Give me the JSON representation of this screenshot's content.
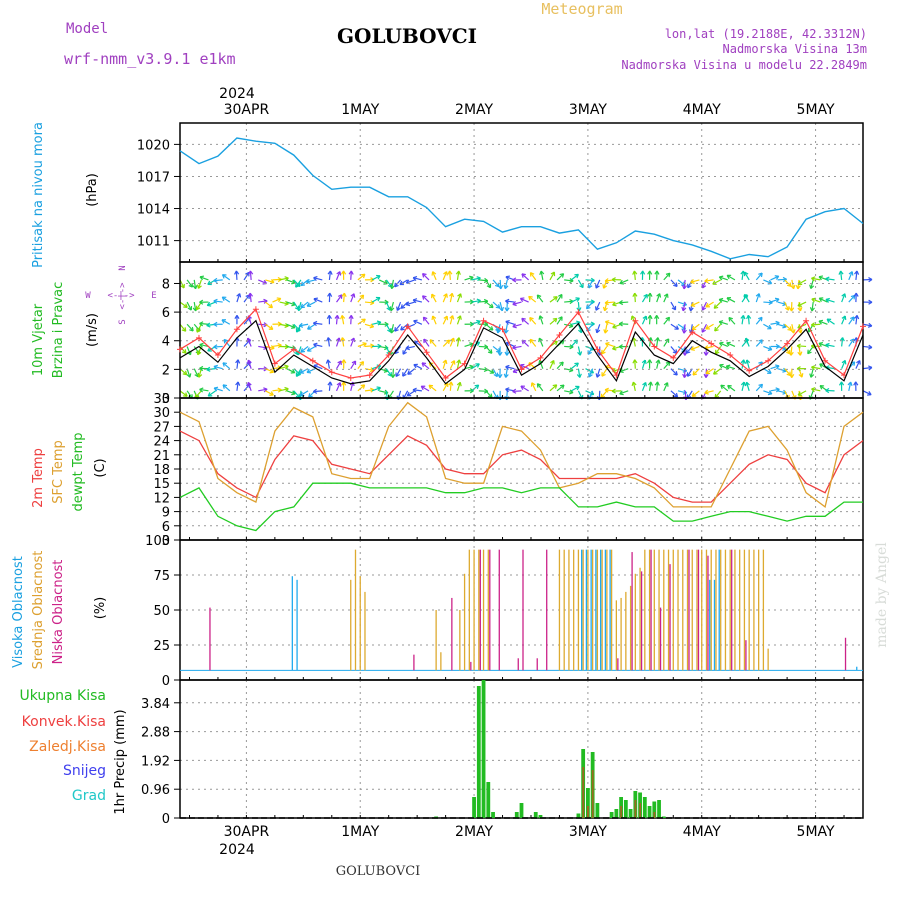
{
  "header": {
    "model_label": "Model",
    "model_name": "wrf-nmm_v3.9.1 e1km",
    "station": "GOLUBOVCI",
    "meteogram": "Meteogram",
    "lonlat": "lon,lat (19.2188E, 42.3312N)",
    "altitude": "Nadmorska Visina 13m",
    "model_altitude": "Nadmorska Visina u modelu 22.2849m",
    "watermark": "made by Angel",
    "footer_station": "GOLUBOVCI",
    "colors": {
      "model": "#a040c0",
      "meteogram": "#e8c060",
      "station": "#000000"
    }
  },
  "axis": {
    "top_year": "2024",
    "bottom_year": "2024",
    "day_labels": [
      "30APR",
      "1MAY",
      "2MAY",
      "3MAY",
      "4MAY",
      "5MAY"
    ]
  },
  "chart_data": [
    {
      "id": "pressure",
      "type": "line",
      "ylabel": "Pritisak na nivou mora",
      "unit": "(hPa)",
      "yticks": [
        1011,
        1014,
        1017,
        1020
      ],
      "ylim": [
        1009,
        1022
      ],
      "grid": true,
      "colors": {
        "line": "#1aa0e0",
        "label": "#1aa0e0"
      },
      "series": [
        {
          "x": [
            0,
            4,
            8,
            12,
            16,
            20,
            24,
            28,
            32,
            36,
            40,
            44,
            48,
            52,
            56,
            60,
            64,
            68,
            72,
            76,
            80,
            84,
            88,
            92,
            96,
            100,
            104,
            108,
            112,
            116,
            120,
            124,
            128,
            132,
            136,
            140,
            144
          ],
          "values": [
            1019.4,
            1018.2,
            1018.9,
            1020.6,
            1020.3,
            1020.1,
            1019.0,
            1017.1,
            1015.8,
            1016.0,
            1016.0,
            1015.1,
            1015.1,
            1014.1,
            1012.3,
            1013.0,
            1012.8,
            1011.8,
            1012.3,
            1012.3,
            1011.7,
            1012.0,
            1010.2,
            1010.8,
            1011.9,
            1011.6,
            1011.0,
            1010.6,
            1010.0,
            1009.3,
            1009.7,
            1009.5,
            1010.4,
            1013.0,
            1013.7,
            1014.0,
            1012.6
          ]
        }
      ]
    },
    {
      "id": "wind",
      "type": "line",
      "ylabel": "10m Vjetar",
      "ylabel2": "Brzina i Pravac",
      "unit": "(m/s)",
      "compass": {
        "n": "N",
        "w": "W",
        "e": "E",
        "s": "S",
        "w_arrow": "<-|->",
        "e_arrow": "<-|->"
      },
      "yticks": [
        0,
        2,
        4,
        6,
        8
      ],
      "ylim": [
        0,
        9.5
      ],
      "grid": true,
      "colors": {
        "line": "#000000",
        "gust": "#ff4040",
        "label": "#22bb22",
        "label2": "#22bb22",
        "compass": "#a040c0"
      },
      "series": [
        {
          "x": [
            0,
            4,
            8,
            12,
            16,
            20,
            24,
            28,
            32,
            36,
            40,
            44,
            48,
            52,
            56,
            60,
            64,
            68,
            72,
            76,
            80,
            84,
            88,
            92,
            96,
            100,
            104,
            108,
            112,
            116,
            120,
            124,
            128,
            132,
            136,
            140,
            144
          ],
          "values": [
            2.8,
            3.6,
            2.5,
            4.2,
            5.4,
            1.8,
            3.0,
            2.2,
            1.4,
            1.0,
            1.2,
            2.6,
            4.4,
            2.8,
            1.0,
            2.0,
            4.9,
            4.2,
            1.6,
            2.4,
            3.8,
            5.2,
            3.0,
            1.2,
            4.6,
            3.0,
            2.4,
            4.0,
            3.2,
            2.6,
            1.5,
            2.2,
            3.4,
            4.8,
            2.2,
            1.2,
            4.4
          ]
        },
        {
          "x": [
            0,
            4,
            8,
            12,
            16,
            20,
            24,
            28,
            32,
            36,
            40,
            44,
            48,
            52,
            56,
            60,
            64,
            68,
            72,
            76,
            80,
            84,
            88,
            92,
            96,
            100,
            104,
            108,
            112,
            116,
            120,
            124,
            128,
            132,
            136,
            140,
            144
          ],
          "values": [
            3.4,
            4.2,
            3.0,
            4.8,
            6.2,
            2.4,
            3.4,
            2.6,
            1.8,
            1.4,
            1.6,
            3.0,
            5.0,
            3.2,
            1.4,
            2.4,
            5.4,
            4.8,
            2.0,
            2.8,
            4.4,
            6.0,
            3.4,
            1.6,
            5.4,
            3.6,
            2.8,
            4.6,
            3.8,
            3.0,
            1.9,
            2.6,
            3.8,
            5.4,
            2.6,
            1.6,
            5.0
          ]
        }
      ]
    },
    {
      "id": "temperature",
      "type": "line",
      "ylabel": "2m Temp",
      "ylabel2": "SFC Temp",
      "ylabel3": "dewpt Temp",
      "unit": "(C)",
      "yticks": [
        3,
        6,
        9,
        12,
        15,
        18,
        21,
        24,
        27,
        30,
        33
      ],
      "ylim": [
        3,
        33
      ],
      "grid": true,
      "colors": {
        "t2m": "#ee4040",
        "sfc": "#dda030",
        "dew": "#22cc22"
      },
      "series": [
        {
          "name": "2m Temp",
          "x": [
            0,
            4,
            8,
            12,
            16,
            20,
            24,
            28,
            32,
            36,
            40,
            44,
            48,
            52,
            56,
            60,
            64,
            68,
            72,
            76,
            80,
            84,
            88,
            92,
            96,
            100,
            104,
            108,
            112,
            116,
            120,
            124,
            128,
            132,
            136,
            140,
            144
          ],
          "values": [
            26,
            24,
            17,
            14,
            12,
            20,
            25,
            24,
            19,
            18,
            17,
            21,
            25,
            23,
            18,
            17,
            17,
            21,
            22,
            20,
            16,
            16,
            16,
            16,
            17,
            15,
            12,
            11,
            11,
            15,
            19,
            21,
            20,
            15,
            13,
            21,
            24
          ]
        },
        {
          "name": "SFC Temp",
          "x": [
            0,
            4,
            8,
            12,
            16,
            20,
            24,
            28,
            32,
            36,
            40,
            44,
            48,
            52,
            56,
            60,
            64,
            68,
            72,
            76,
            80,
            84,
            88,
            92,
            96,
            100,
            104,
            108,
            112,
            116,
            120,
            124,
            128,
            132,
            136,
            140,
            144
          ],
          "values": [
            30,
            28,
            16,
            13,
            11,
            26,
            31,
            29,
            17,
            16,
            16,
            27,
            32,
            29,
            16,
            15,
            15,
            27,
            26,
            22,
            14,
            15,
            17,
            17,
            16,
            14,
            10,
            10,
            10,
            18,
            26,
            27,
            22,
            13,
            10,
            27,
            30
          ]
        },
        {
          "name": "dewpt Temp",
          "x": [
            0,
            4,
            8,
            12,
            16,
            20,
            24,
            28,
            32,
            36,
            40,
            44,
            48,
            52,
            56,
            60,
            64,
            68,
            72,
            76,
            80,
            84,
            88,
            92,
            96,
            100,
            104,
            108,
            112,
            116,
            120,
            124,
            128,
            132,
            136,
            140,
            144
          ],
          "values": [
            12,
            14,
            8,
            6,
            5,
            9,
            10,
            15,
            15,
            15,
            14,
            14,
            14,
            14,
            13,
            13,
            14,
            14,
            13,
            14,
            14,
            10,
            10,
            11,
            10,
            10,
            7,
            7,
            8,
            9,
            9,
            8,
            7,
            8,
            8,
            11,
            11
          ]
        }
      ]
    },
    {
      "id": "clouds",
      "type": "bar",
      "ylabel": "Visoka Oblacnost",
      "ylabel2": "Srednja Oblacnost",
      "ylabel3": "Niska Oblacnost",
      "unit": "(%)",
      "yticks": [
        0,
        25,
        50,
        75,
        100
      ],
      "ylim": [
        0,
        100
      ],
      "grid": true,
      "colors": {
        "high": "#20aaee",
        "mid": "#ddaa30",
        "low": "#cc2288"
      },
      "series": [
        {
          "name": "Visoka Oblacnost",
          "x": [
            24,
            25,
            85,
            86,
            87,
            88,
            89,
            90,
            91,
            112,
            113,
            114,
            142,
            143
          ],
          "values": [
            78,
            75,
            100,
            100,
            100,
            100,
            100,
            100,
            100,
            75,
            75,
            100,
            0,
            3
          ]
        },
        {
          "name": "Srednja Oblacnost",
          "x": [
            36,
            37,
            38,
            39,
            54,
            55,
            59,
            60,
            61,
            62,
            63,
            64,
            65,
            80,
            81,
            82,
            83,
            84,
            85,
            86,
            87,
            88,
            89,
            90,
            91,
            92,
            93,
            94,
            95,
            96,
            97,
            98,
            99,
            100,
            101,
            102,
            103,
            104,
            105,
            106,
            107,
            108,
            109,
            110,
            111,
            112,
            113,
            114,
            115,
            116,
            117,
            118,
            119,
            120,
            121,
            122,
            123,
            124
          ],
          "values": [
            75,
            100,
            78,
            65,
            50,
            15,
            50,
            80,
            100,
            100,
            100,
            100,
            100,
            100,
            100,
            100,
            100,
            100,
            100,
            100,
            100,
            100,
            100,
            100,
            100,
            58,
            60,
            65,
            70,
            80,
            85,
            100,
            100,
            100,
            100,
            100,
            100,
            100,
            100,
            100,
            100,
            100,
            100,
            100,
            100,
            100,
            100,
            100,
            100,
            100,
            100,
            100,
            100,
            100,
            100,
            100,
            100,
            18
          ]
        },
        {
          "name": "Niska Oblacnost",
          "x": [
            6,
            49,
            57,
            61,
            63,
            65,
            67,
            71,
            72,
            75,
            77,
            92,
            95,
            97,
            99,
            101,
            103,
            107,
            109,
            111,
            116,
            119,
            140
          ],
          "values": [
            52,
            13,
            60,
            7,
            100,
            100,
            100,
            10,
            100,
            10,
            100,
            10,
            98,
            82,
            100,
            52,
            88,
            100,
            100,
            95,
            100,
            25,
            27
          ]
        }
      ]
    },
    {
      "id": "precip",
      "type": "bar",
      "ylabel": "1hr Precip (mm)",
      "yticks": [
        0,
        0.96,
        1.92,
        2.88,
        3.84
      ],
      "ylim": [
        0,
        4.6
      ],
      "grid": true,
      "legend": [
        {
          "name": "Ukupna Kisa",
          "color": "#22bb22"
        },
        {
          "name": "Konvek.Kisa",
          "color": "#ee4040"
        },
        {
          "name": "Zaledj.Kisa",
          "color": "#ee8030"
        },
        {
          "name": "Snijeg",
          "color": "#4040ee"
        },
        {
          "name": "Grad",
          "color": "#20c8c8"
        }
      ],
      "colors": {
        "total": "#22bb22",
        "convective": "#9a6a20"
      },
      "series": [
        {
          "name": "Ukupna Kisa",
          "x": [
            54,
            62,
            63,
            64,
            65,
            66,
            71,
            72,
            75,
            76,
            84,
            85,
            86,
            87,
            88,
            91,
            92,
            93,
            94,
            95,
            96,
            97,
            98,
            99,
            100,
            101,
            102
          ],
          "values": [
            0.05,
            0.7,
            4.4,
            4.6,
            1.2,
            0.2,
            0.2,
            0.5,
            0.2,
            0.1,
            0.15,
            2.3,
            1.0,
            2.2,
            0.5,
            0.2,
            0.3,
            0.7,
            0.6,
            0.3,
            0.9,
            0.85,
            0.7,
            0.4,
            0.55,
            0.6,
            0.05
          ]
        },
        {
          "name": "Konvek.Kisa",
          "x": [
            85,
            86,
            87,
            93,
            96,
            97,
            100
          ],
          "values": [
            1.7,
            0.4,
            1.6,
            0.4,
            0.6,
            0.5,
            0.2
          ]
        }
      ]
    }
  ]
}
